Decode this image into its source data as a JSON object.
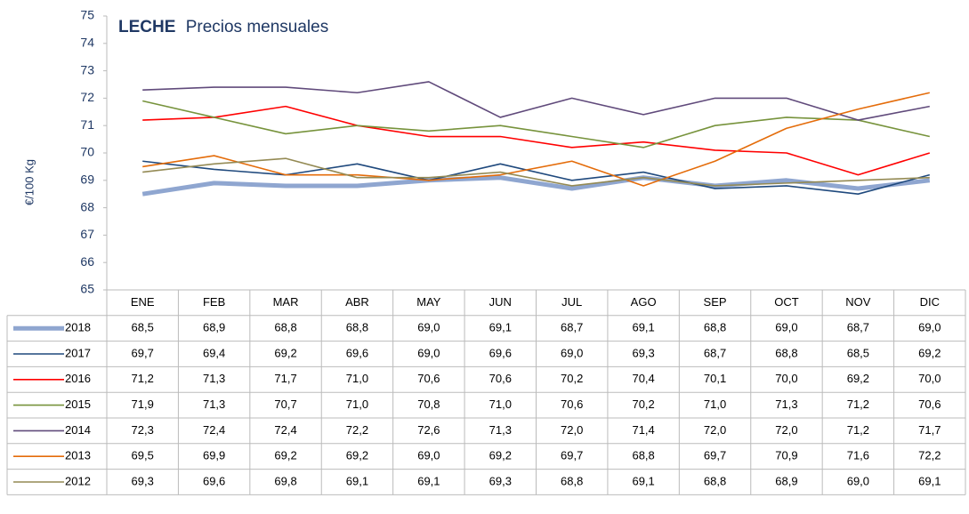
{
  "chart_data": {
    "type": "line",
    "title": "LECHE",
    "subtitle": "Precios mensuales",
    "y_label": "€/100 Kg",
    "categories": [
      "ENE",
      "FEB",
      "MAR",
      "ABR",
      "MAY",
      "JUN",
      "JUL",
      "AGO",
      "SEP",
      "OCT",
      "NOV",
      "DIC"
    ],
    "ylim": [
      65,
      75
    ],
    "yticks": [
      65,
      66,
      67,
      68,
      69,
      70,
      71,
      72,
      73,
      74,
      75
    ],
    "grid": false,
    "series": [
      {
        "name": "2018",
        "color": "#8fa6d0",
        "width": 5,
        "values": [
          68.5,
          68.9,
          68.8,
          68.8,
          69.0,
          69.1,
          68.7,
          69.1,
          68.8,
          69.0,
          68.7,
          69.0
        ],
        "value_labels": [
          "68,5",
          "68,9",
          "68,8",
          "68,8",
          "69,0",
          "69,1",
          "68,7",
          "69,1",
          "68,8",
          "69,0",
          "68,7",
          "69,0"
        ]
      },
      {
        "name": "2017",
        "color": "#1f497d",
        "width": 1.6,
        "values": [
          69.7,
          69.4,
          69.2,
          69.6,
          69.0,
          69.6,
          69.0,
          69.3,
          68.7,
          68.8,
          68.5,
          69.2
        ],
        "value_labels": [
          "69,7",
          "69,4",
          "69,2",
          "69,6",
          "69,0",
          "69,6",
          "69,0",
          "69,3",
          "68,7",
          "68,8",
          "68,5",
          "69,2"
        ]
      },
      {
        "name": "2016",
        "color": "#ff0000",
        "width": 1.6,
        "values": [
          71.2,
          71.3,
          71.7,
          71.0,
          70.6,
          70.6,
          70.2,
          70.4,
          70.1,
          70.0,
          69.2,
          70.0
        ],
        "value_labels": [
          "71,2",
          "71,3",
          "71,7",
          "71,0",
          "70,6",
          "70,6",
          "70,2",
          "70,4",
          "70,1",
          "70,0",
          "69,2",
          "70,0"
        ]
      },
      {
        "name": "2015",
        "color": "#77933c",
        "width": 1.6,
        "values": [
          71.9,
          71.3,
          70.7,
          71.0,
          70.8,
          71.0,
          70.6,
          70.2,
          71.0,
          71.3,
          71.2,
          70.6
        ],
        "value_labels": [
          "71,9",
          "71,3",
          "70,7",
          "71,0",
          "70,8",
          "71,0",
          "70,6",
          "70,2",
          "71,0",
          "71,3",
          "71,2",
          "70,6"
        ]
      },
      {
        "name": "2014",
        "color": "#604a7b",
        "width": 1.6,
        "values": [
          72.3,
          72.4,
          72.4,
          72.2,
          72.6,
          71.3,
          72.0,
          71.4,
          72.0,
          72.0,
          71.2,
          71.7
        ],
        "value_labels": [
          "72,3",
          "72,4",
          "72,4",
          "72,2",
          "72,6",
          "71,3",
          "72,0",
          "71,4",
          "72,0",
          "72,0",
          "71,2",
          "71,7"
        ]
      },
      {
        "name": "2013",
        "color": "#e46c0a",
        "width": 1.6,
        "values": [
          69.5,
          69.9,
          69.2,
          69.2,
          69.0,
          69.2,
          69.7,
          68.8,
          69.7,
          70.9,
          71.6,
          72.2
        ],
        "value_labels": [
          "69,5",
          "69,9",
          "69,2",
          "69,2",
          "69,0",
          "69,2",
          "69,7",
          "68,8",
          "69,7",
          "70,9",
          "71,6",
          "72,2"
        ]
      },
      {
        "name": "2012",
        "color": "#948a54",
        "width": 1.6,
        "values": [
          69.3,
          69.6,
          69.8,
          69.1,
          69.1,
          69.3,
          68.8,
          69.1,
          68.8,
          68.9,
          69.0,
          69.1
        ],
        "value_labels": [
          "69,3",
          "69,6",
          "69,8",
          "69,1",
          "69,1",
          "69,3",
          "68,8",
          "69,1",
          "68,8",
          "68,9",
          "69,0",
          "69,1"
        ]
      }
    ]
  }
}
